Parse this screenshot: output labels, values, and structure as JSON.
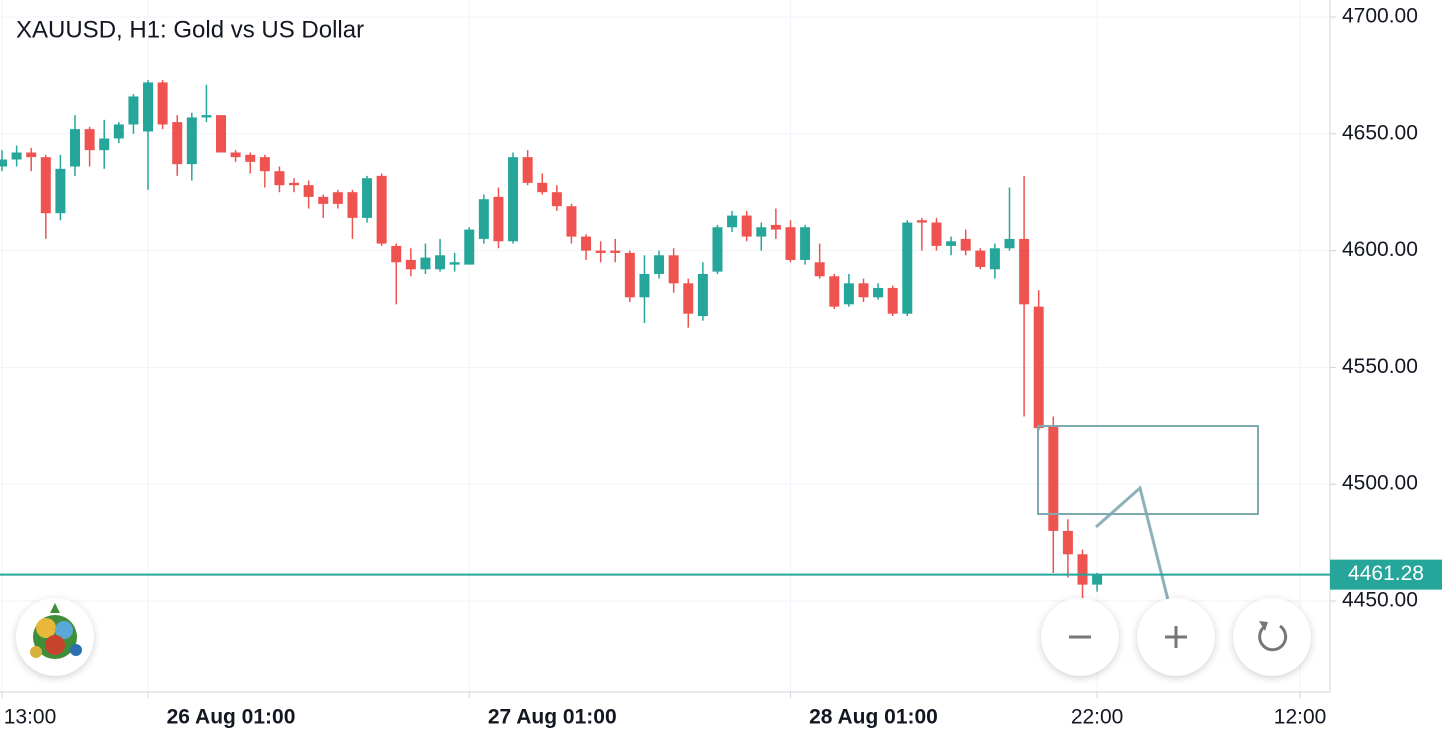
{
  "chart_data": {
    "type": "candlestick",
    "title": "XAUUSD, H1: Gold vs US Dollar",
    "up_color": "#26a69a",
    "down_color": "#ef5350",
    "grid": true,
    "xlim": [
      -0.137,
      90.95
    ],
    "ylim": [
      4411.04,
      4707.28
    ],
    "xticks": [
      {
        "value": 0,
        "label": "13:00"
      },
      {
        "value": 10,
        "label": "26 Aug 01:00"
      },
      {
        "value": 32,
        "label": "27 Aug 01:00"
      },
      {
        "value": 54,
        "label": "28 Aug 01:00"
      },
      {
        "value": 75,
        "label": "22:00"
      },
      {
        "value": 88.9,
        "label": "12:00"
      }
    ],
    "yticks": [
      {
        "value": 4450,
        "label": "4450.00"
      },
      {
        "value": 4500,
        "label": "4500.00"
      },
      {
        "value": 4550,
        "label": "4550.00"
      },
      {
        "value": 4600,
        "label": "4600.00"
      },
      {
        "value": 4650,
        "label": "4650.00"
      },
      {
        "value": 4700,
        "label": "4700.00"
      }
    ],
    "last_price": 4461.28,
    "last_price_color": "#26a69a",
    "open": [
      4636,
      4639,
      4642,
      4640,
      4616,
      4636,
      4652,
      4643,
      4648,
      4654,
      4651,
      4672,
      4655,
      4637,
      4657,
      4658,
      4642,
      4641,
      4640,
      4634,
      4629,
      4628,
      4623,
      4625,
      4625,
      4614,
      4632,
      4602,
      4596,
      4592,
      4592,
      4594,
      4594,
      4605,
      4623,
      4604,
      4640,
      4629,
      4625,
      4619,
      4606,
      4600,
      4600,
      4599,
      4580,
      4590,
      4598,
      4586,
      4572,
      4591,
      4610,
      4615,
      4606,
      4611,
      4610,
      4596,
      4595,
      4589,
      4577,
      4586,
      4580,
      4584,
      4573,
      4613,
      4612,
      4602,
      4605,
      4600,
      4592,
      4601,
      4605,
      4576,
      4525,
      4480,
      4470,
      4457
    ],
    "high": [
      4643,
      4645,
      4644,
      4641,
      4641,
      4658,
      4653,
      4656,
      4655,
      4667,
      4673,
      4673,
      4658,
      4659,
      4671,
      4658,
      4643,
      4642,
      4641,
      4636,
      4631,
      4630,
      4624,
      4626,
      4626,
      4632,
      4633,
      4603,
      4601,
      4603,
      4605,
      4599,
      4610,
      4624,
      4627,
      4642,
      4643,
      4633,
      4628,
      4620,
      4607,
      4604,
      4605,
      4600,
      4598,
      4600,
      4601,
      4588,
      4595,
      4611,
      4617,
      4617,
      4612,
      4618,
      4613,
      4611,
      4603,
      4590,
      4590,
      4588,
      4586,
      4585,
      4613,
      4614,
      4614,
      4606,
      4609,
      4601,
      4603,
      4627,
      4632,
      4583,
      4529,
      4485,
      4472,
      4462
    ],
    "low": [
      4634,
      4636,
      4634,
      4605,
      4613,
      4632,
      4636,
      4635,
      4646,
      4650,
      4626,
      4652,
      4632,
      4630,
      4655,
      4642,
      4638,
      4633,
      4627,
      4625,
      4625,
      4618,
      4614,
      4618,
      4605,
      4612,
      4602,
      4577,
      4589,
      4590,
      4591,
      4591,
      4594,
      4603,
      4601,
      4603,
      4628,
      4624,
      4617,
      4603,
      4596,
      4595,
      4595,
      4578,
      4569,
      4588,
      4582,
      4567,
      4570,
      4590,
      4608,
      4604,
      4600,
      4605,
      4595,
      4594,
      4588,
      4575,
      4576,
      4578,
      4579,
      4572,
      4572,
      4600,
      4600,
      4598,
      4598,
      4592,
      4588,
      4600,
      4529,
      4523,
      4462,
      4460,
      4446,
      4454
    ],
    "close": [
      4639,
      4642,
      4640,
      4616,
      4635,
      4652,
      4643,
      4648,
      4654,
      4666,
      4672,
      4654,
      4637,
      4657,
      4658,
      4642,
      4640,
      4638,
      4634,
      4628,
      4628,
      4623,
      4620,
      4620,
      4614,
      4631,
      4603,
      4595,
      4592,
      4597,
      4598,
      4595,
      4609,
      4622,
      4604,
      4640,
      4629,
      4625,
      4619,
      4606,
      4600,
      4599,
      4599,
      4580,
      4590,
      4598,
      4586,
      4573,
      4590,
      4610,
      4615,
      4606,
      4610,
      4609,
      4596,
      4610,
      4589,
      4576,
      4586,
      4580,
      4584,
      4573,
      4612,
      4612,
      4602,
      4604,
      4600,
      4593,
      4601,
      4605,
      4577,
      4524,
      4480,
      4470,
      4457,
      4461.28
    ]
  }
}
